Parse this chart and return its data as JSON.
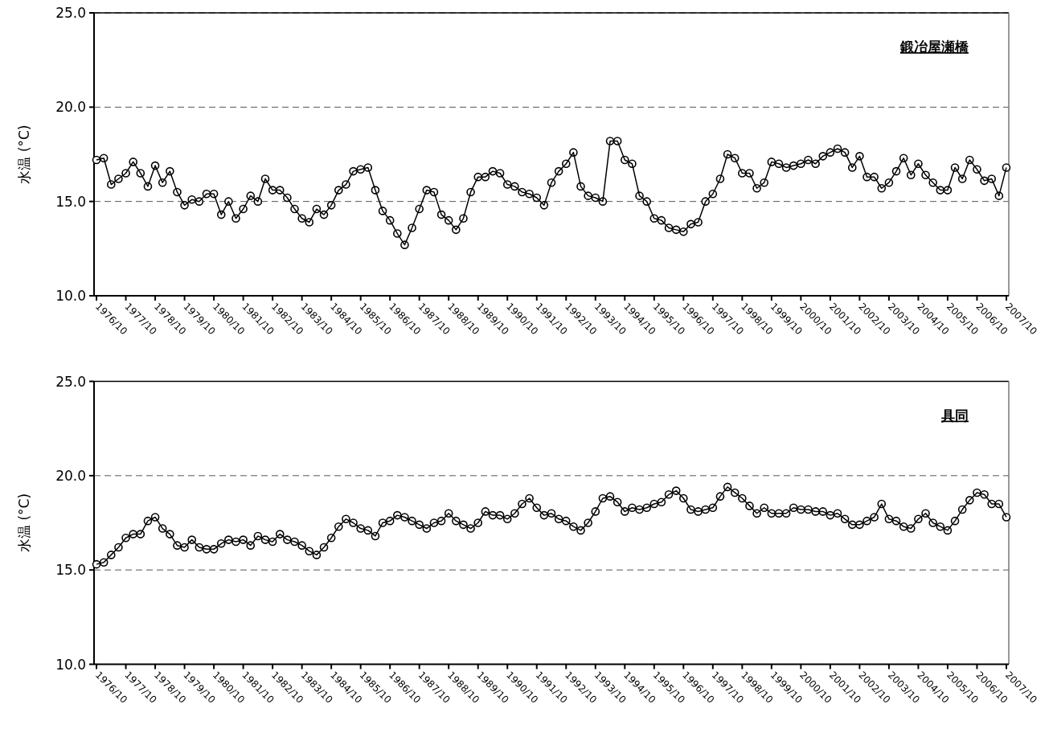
{
  "chart_data": [
    {
      "type": "line",
      "ylabel": "水温 (°C)",
      "annotations": [
        "鍛冶屋瀬橋"
      ],
      "marker": "circle",
      "line_style": "solid",
      "grid": "y",
      "xlim": [
        "1976-09",
        "2007-11"
      ],
      "ylim": [
        10,
        25
      ],
      "yticks": [
        {
          "value": 10,
          "label": "10.0"
        },
        {
          "value": 15,
          "label": "15.0"
        },
        {
          "value": 20,
          "label": "20.0"
        },
        {
          "value": 25,
          "label": "25.0"
        }
      ],
      "xticks": [
        {
          "value": "1976-10",
          "label": "1976/10"
        },
        {
          "value": "1977-10",
          "label": "1977/10"
        },
        {
          "value": "1978-10",
          "label": "1978/10"
        },
        {
          "value": "1979-10",
          "label": "1979/10"
        },
        {
          "value": "1980-10",
          "label": "1980/10"
        },
        {
          "value": "1981-10",
          "label": "1981/10"
        },
        {
          "value": "1982-10",
          "label": "1982/10"
        },
        {
          "value": "1983-10",
          "label": "1983/10"
        },
        {
          "value": "1984-10",
          "label": "1984/10"
        },
        {
          "value": "1985-10",
          "label": "1985/10"
        },
        {
          "value": "1986-10",
          "label": "1986/10"
        },
        {
          "value": "1987-10",
          "label": "1987/10"
        },
        {
          "value": "1988-10",
          "label": "1988/10"
        },
        {
          "value": "1989-10",
          "label": "1989/10"
        },
        {
          "value": "1990-10",
          "label": "1990/10"
        },
        {
          "value": "1991-10",
          "label": "1991/10"
        },
        {
          "value": "1992-10",
          "label": "1992/10"
        },
        {
          "value": "1993-10",
          "label": "1993/10"
        },
        {
          "value": "1994-10",
          "label": "1994/10"
        },
        {
          "value": "1995-10",
          "label": "1995/10"
        },
        {
          "value": "1996-10",
          "label": "1996/10"
        },
        {
          "value": "1997-10",
          "label": "1997/10"
        },
        {
          "value": "1998-10",
          "label": "1998/10"
        },
        {
          "value": "1999-10",
          "label": "1999/10"
        },
        {
          "value": "2000-10",
          "label": "2000/10"
        },
        {
          "value": "2001-10",
          "label": "2001/10"
        },
        {
          "value": "2002-10",
          "label": "2002/10"
        },
        {
          "value": "2003-10",
          "label": "2003/10"
        },
        {
          "value": "2004-10",
          "label": "2004/10"
        },
        {
          "value": "2005-10",
          "label": "2005/10"
        },
        {
          "value": "2006-10",
          "label": "2006/10"
        },
        {
          "value": "2007-10",
          "label": "2007/10"
        }
      ],
      "x": [
        "1976-10",
        "1977-01",
        "1977-04",
        "1977-07",
        "1977-10",
        "1978-01",
        "1978-04",
        "1978-07",
        "1978-10",
        "1979-01",
        "1979-04",
        "1979-07",
        "1979-10",
        "1980-01",
        "1980-04",
        "1980-07",
        "1980-10",
        "1981-01",
        "1981-04",
        "1981-07",
        "1981-10",
        "1982-01",
        "1982-04",
        "1982-07",
        "1982-10",
        "1983-01",
        "1983-04",
        "1983-07",
        "1983-10",
        "1984-01",
        "1984-04",
        "1984-07",
        "1984-10",
        "1985-01",
        "1985-04",
        "1985-07",
        "1985-10",
        "1986-01",
        "1986-04",
        "1986-07",
        "1986-10",
        "1987-01",
        "1987-04",
        "1987-07",
        "1987-10",
        "1988-01",
        "1988-04",
        "1988-07",
        "1988-10",
        "1989-01",
        "1989-04",
        "1989-07",
        "1989-10",
        "1990-01",
        "1990-04",
        "1990-07",
        "1990-10",
        "1991-01",
        "1991-04",
        "1991-07",
        "1991-10",
        "1992-01",
        "1992-04",
        "1992-07",
        "1992-10",
        "1993-01",
        "1993-04",
        "1993-07",
        "1993-10",
        "1994-01",
        "1994-04",
        "1994-07",
        "1994-10",
        "1995-01",
        "1995-04",
        "1995-07",
        "1995-10",
        "1996-01",
        "1996-04",
        "1996-07",
        "1996-10",
        "1997-01",
        "1997-04",
        "1997-07",
        "1997-10",
        "1998-01",
        "1998-04",
        "1998-07",
        "1998-10",
        "1999-01",
        "1999-04",
        "1999-07",
        "1999-10",
        "2000-01",
        "2000-04",
        "2000-07",
        "2000-10",
        "2001-01",
        "2001-04",
        "2001-07",
        "2001-10",
        "2002-01",
        "2002-04",
        "2002-07",
        "2002-10",
        "2003-01",
        "2003-04",
        "2003-07",
        "2003-10",
        "2004-01",
        "2004-04",
        "2004-07",
        "2004-10",
        "2005-01",
        "2005-04",
        "2005-07",
        "2005-10",
        "2006-01",
        "2006-04",
        "2006-07",
        "2006-10",
        "2007-01",
        "2007-04",
        "2007-07",
        "2007-10"
      ],
      "series": [
        {
          "color": "#000000",
          "values": [
            17.2,
            17.3,
            15.9,
            16.2,
            16.5,
            17.1,
            16.5,
            15.8,
            16.9,
            16.0,
            16.6,
            15.5,
            14.8,
            15.1,
            15.0,
            15.4,
            15.4,
            14.3,
            15.0,
            14.1,
            14.6,
            15.3,
            15.0,
            16.2,
            15.6,
            15.6,
            15.2,
            14.6,
            14.1,
            13.9,
            14.6,
            14.3,
            14.8,
            15.6,
            15.9,
            16.6,
            16.7,
            16.8,
            15.6,
            14.5,
            14.0,
            13.3,
            12.7,
            13.6,
            14.6,
            15.6,
            15.5,
            14.3,
            14.0,
            13.5,
            14.1,
            15.5,
            16.3,
            16.3,
            16.6,
            16.5,
            15.9,
            15.8,
            15.5,
            15.4,
            15.2,
            14.8,
            16.0,
            16.6,
            17.0,
            17.6,
            15.8,
            15.3,
            15.2,
            15.0,
            18.2,
            18.2,
            17.2,
            17.0,
            15.3,
            15.0,
            14.1,
            14.0,
            13.6,
            13.5,
            13.4,
            13.8,
            13.9,
            15.0,
            15.4,
            16.2,
            17.5,
            17.3,
            16.5,
            16.5,
            15.7,
            16.0,
            17.1,
            17.0,
            16.8,
            16.9,
            17.0,
            17.2,
            17.0,
            17.4,
            17.6,
            17.8,
            17.6,
            16.8,
            17.4,
            16.3,
            16.3,
            15.7,
            16.0,
            16.6,
            17.3,
            16.4,
            17.0,
            16.4,
            16.0,
            15.6,
            15.6,
            16.8,
            16.2,
            17.2,
            16.7,
            16.1,
            16.2,
            15.3,
            16.8
          ]
        }
      ]
    },
    {
      "type": "line",
      "ylabel": "水温 (°C)",
      "annotations": [
        "具同"
      ],
      "marker": "circle",
      "line_style": "solid",
      "grid": "y",
      "xlim": [
        "1976-09",
        "2007-11"
      ],
      "ylim": [
        10,
        25
      ],
      "yticks": [
        {
          "value": 10,
          "label": "10.0"
        },
        {
          "value": 15,
          "label": "15.0"
        },
        {
          "value": 20,
          "label": "20.0"
        },
        {
          "value": 25,
          "label": "25.0"
        }
      ],
      "xticks": [
        {
          "value": "1976-10",
          "label": "1976/10"
        },
        {
          "value": "1977-10",
          "label": "1977/10"
        },
        {
          "value": "1978-10",
          "label": "1978/10"
        },
        {
          "value": "1979-10",
          "label": "1979/10"
        },
        {
          "value": "1980-10",
          "label": "1980/10"
        },
        {
          "value": "1981-10",
          "label": "1981/10"
        },
        {
          "value": "1982-10",
          "label": "1982/10"
        },
        {
          "value": "1983-10",
          "label": "1983/10"
        },
        {
          "value": "1984-10",
          "label": "1984/10"
        },
        {
          "value": "1985-10",
          "label": "1985/10"
        },
        {
          "value": "1986-10",
          "label": "1986/10"
        },
        {
          "value": "1987-10",
          "label": "1987/10"
        },
        {
          "value": "1988-10",
          "label": "1988/10"
        },
        {
          "value": "1989-10",
          "label": "1989/10"
        },
        {
          "value": "1990-10",
          "label": "1990/10"
        },
        {
          "value": "1991-10",
          "label": "1991/10"
        },
        {
          "value": "1992-10",
          "label": "1992/10"
        },
        {
          "value": "1993-10",
          "label": "1993/10"
        },
        {
          "value": "1994-10",
          "label": "1994/10"
        },
        {
          "value": "1995-10",
          "label": "1995/10"
        },
        {
          "value": "1996-10",
          "label": "1996/10"
        },
        {
          "value": "1997-10",
          "label": "1997/10"
        },
        {
          "value": "1998-10",
          "label": "1998/10"
        },
        {
          "value": "1999-10",
          "label": "1999/10"
        },
        {
          "value": "2000-10",
          "label": "2000/10"
        },
        {
          "value": "2001-10",
          "label": "2001/10"
        },
        {
          "value": "2002-10",
          "label": "2002/10"
        },
        {
          "value": "2003-10",
          "label": "2003/10"
        },
        {
          "value": "2004-10",
          "label": "2004/10"
        },
        {
          "value": "2005-10",
          "label": "2005/10"
        },
        {
          "value": "2006-10",
          "label": "2006/10"
        },
        {
          "value": "2007-10",
          "label": "2007/10"
        }
      ],
      "x": [
        "1976-10",
        "1977-01",
        "1977-04",
        "1977-07",
        "1977-10",
        "1978-01",
        "1978-04",
        "1978-07",
        "1978-10",
        "1979-01",
        "1979-04",
        "1979-07",
        "1979-10",
        "1980-01",
        "1980-04",
        "1980-07",
        "1980-10",
        "1981-01",
        "1981-04",
        "1981-07",
        "1981-10",
        "1982-01",
        "1982-04",
        "1982-07",
        "1982-10",
        "1983-01",
        "1983-04",
        "1983-07",
        "1983-10",
        "1984-01",
        "1984-04",
        "1984-07",
        "1984-10",
        "1985-01",
        "1985-04",
        "1985-07",
        "1985-10",
        "1986-01",
        "1986-04",
        "1986-07",
        "1986-10",
        "1987-01",
        "1987-04",
        "1987-07",
        "1987-10",
        "1988-01",
        "1988-04",
        "1988-07",
        "1988-10",
        "1989-01",
        "1989-04",
        "1989-07",
        "1989-10",
        "1990-01",
        "1990-04",
        "1990-07",
        "1990-10",
        "1991-01",
        "1991-04",
        "1991-07",
        "1991-10",
        "1992-01",
        "1992-04",
        "1992-07",
        "1992-10",
        "1993-01",
        "1993-04",
        "1993-07",
        "1993-10",
        "1994-01",
        "1994-04",
        "1994-07",
        "1994-10",
        "1995-01",
        "1995-04",
        "1995-07",
        "1995-10",
        "1996-01",
        "1996-04",
        "1996-07",
        "1996-10",
        "1997-01",
        "1997-04",
        "1997-07",
        "1997-10",
        "1998-01",
        "1998-04",
        "1998-07",
        "1998-10",
        "1999-01",
        "1999-04",
        "1999-07",
        "1999-10",
        "2000-01",
        "2000-04",
        "2000-07",
        "2000-10",
        "2001-01",
        "2001-04",
        "2001-07",
        "2001-10",
        "2002-01",
        "2002-04",
        "2002-07",
        "2002-10",
        "2003-01",
        "2003-04",
        "2003-07",
        "2003-10",
        "2004-01",
        "2004-04",
        "2004-07",
        "2004-10",
        "2005-01",
        "2005-04",
        "2005-07",
        "2005-10",
        "2006-01",
        "2006-04",
        "2006-07",
        "2006-10",
        "2007-01",
        "2007-04",
        "2007-07",
        "2007-10"
      ],
      "series": [
        {
          "color": "#000000",
          "values": [
            15.3,
            15.4,
            15.8,
            16.2,
            16.7,
            16.9,
            16.9,
            17.6,
            17.8,
            17.2,
            16.9,
            16.3,
            16.2,
            16.6,
            16.2,
            16.1,
            16.1,
            16.4,
            16.6,
            16.5,
            16.6,
            16.3,
            16.8,
            16.6,
            16.5,
            16.9,
            16.6,
            16.5,
            16.3,
            16.0,
            15.8,
            16.2,
            16.7,
            17.3,
            17.7,
            17.5,
            17.2,
            17.1,
            16.8,
            17.5,
            17.6,
            17.9,
            17.8,
            17.6,
            17.4,
            17.2,
            17.5,
            17.6,
            18.0,
            17.6,
            17.4,
            17.2,
            17.5,
            18.1,
            17.9,
            17.9,
            17.7,
            18.0,
            18.5,
            18.8,
            18.3,
            17.9,
            18.0,
            17.7,
            17.6,
            17.3,
            17.1,
            17.5,
            18.1,
            18.8,
            18.9,
            18.6,
            18.1,
            18.3,
            18.2,
            18.3,
            18.5,
            18.6,
            19.0,
            19.2,
            18.8,
            18.2,
            18.1,
            18.2,
            18.3,
            18.9,
            19.4,
            19.1,
            18.8,
            18.4,
            18.0,
            18.3,
            18.0,
            18.0,
            18.0,
            18.3,
            18.2,
            18.2,
            18.1,
            18.1,
            17.9,
            18.0,
            17.7,
            17.4,
            17.4,
            17.6,
            17.8,
            18.5,
            17.7,
            17.6,
            17.3,
            17.2,
            17.7,
            18.0,
            17.5,
            17.3,
            17.1,
            17.6,
            18.2,
            18.7,
            19.1,
            19.0,
            18.5,
            18.5,
            17.8
          ]
        }
      ]
    }
  ]
}
